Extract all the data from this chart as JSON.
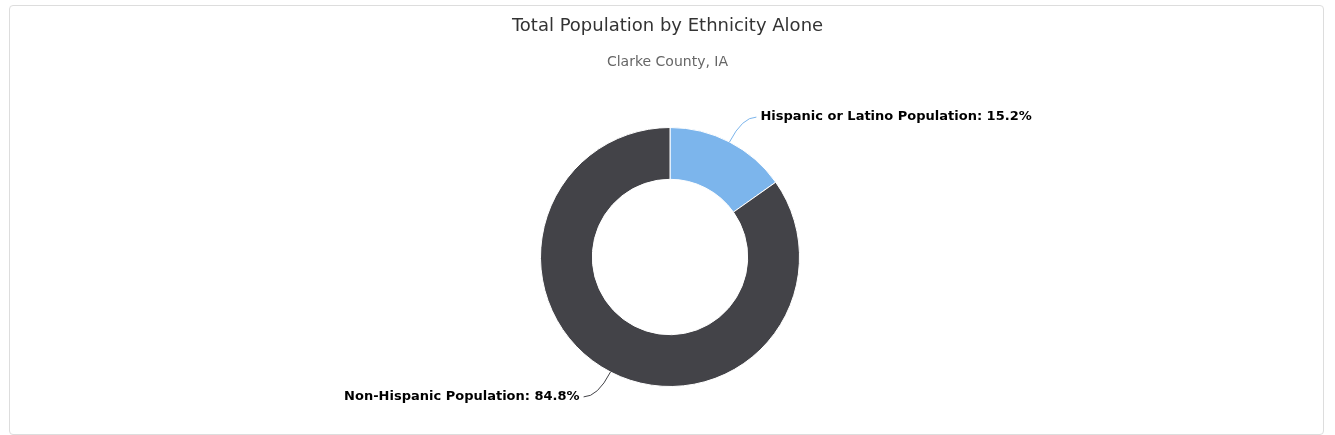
{
  "chart_data": {
    "type": "donut",
    "title": "Total Population by Ethnicity Alone",
    "subtitle": "Clarke County, IA",
    "categories": [
      "Hispanic or Latino Population",
      "Non-Hispanic Population"
    ],
    "values": [
      15.2,
      84.8
    ],
    "colors": [
      "#7cb5ec",
      "#434348"
    ],
    "value_labels": [
      "15.2%",
      "84.8%"
    ]
  }
}
